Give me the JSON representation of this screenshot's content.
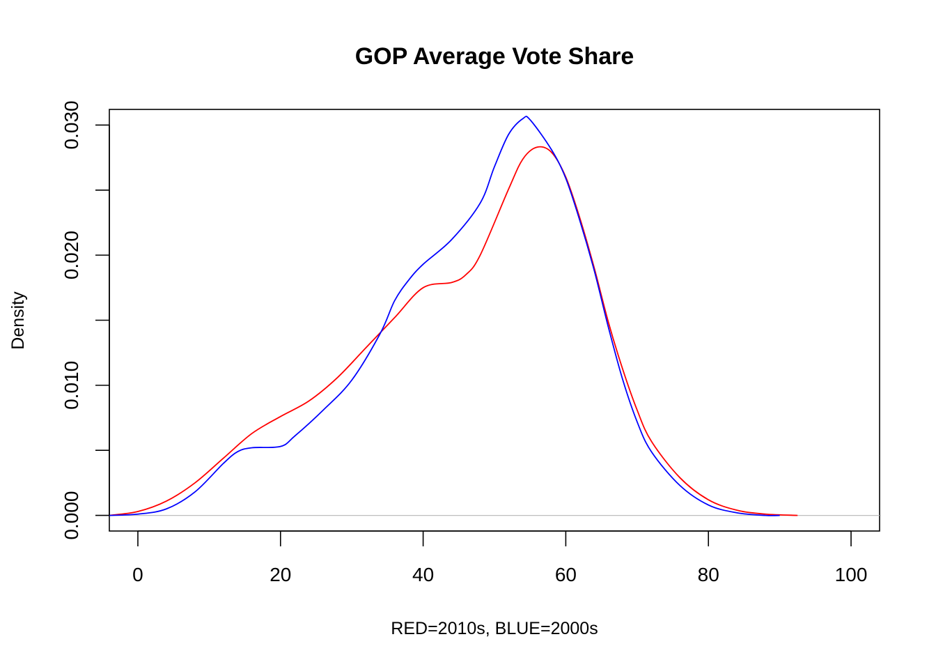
{
  "chart_data": {
    "type": "line",
    "title": "GOP Average Vote Share",
    "xlabel": "RED=2010s, BLUE=2000s",
    "ylabel": "Density",
    "xlim": [
      -4,
      104
    ],
    "ylim": [
      -0.0012,
      0.0312
    ],
    "x_ticks": [
      0,
      20,
      40,
      60,
      80,
      100
    ],
    "x_tick_labels": [
      "0",
      "20",
      "40",
      "60",
      "80",
      "100"
    ],
    "y_ticks": [
      0,
      0.005,
      0.01,
      0.015,
      0.02,
      0.025,
      0.03
    ],
    "y_tick_labels": [
      "0.000",
      "",
      "0.010",
      "",
      "0.020",
      "",
      "0.030"
    ],
    "baseline": 0,
    "grid": false,
    "series": [
      {
        "color": "#ff0000",
        "x": [
          -4,
          0,
          4,
          8,
          12,
          16,
          20,
          24,
          28,
          32,
          36,
          40,
          44,
          46,
          48,
          52,
          54,
          56,
          58,
          60,
          62,
          64,
          66,
          68,
          70,
          72,
          76,
          80,
          84,
          88,
          92.5
        ],
        "y": [
          0.0,
          0.0003,
          0.0011,
          0.0025,
          0.0044,
          0.0063,
          0.0076,
          0.0088,
          0.0106,
          0.0129,
          0.0152,
          0.0175,
          0.0179,
          0.0185,
          0.02,
          0.0251,
          0.0274,
          0.0283,
          0.0279,
          0.026,
          0.0228,
          0.019,
          0.0148,
          0.0112,
          0.0081,
          0.0057,
          0.0029,
          0.0012,
          0.0004,
          0.0001,
          0.0
        ]
      },
      {
        "color": "#0000ff",
        "x": [
          -4,
          0,
          4,
          8,
          12,
          14,
          16,
          20,
          22,
          26,
          30,
          34,
          36,
          38,
          40,
          44,
          48,
          50,
          52,
          54,
          55,
          58,
          60,
          62,
          64,
          66,
          68,
          70,
          72,
          76,
          80,
          84,
          88,
          90
        ],
        "y": [
          0.0,
          0.0001,
          0.0005,
          0.0018,
          0.004,
          0.0049,
          0.0052,
          0.0053,
          0.0061,
          0.0081,
          0.0104,
          0.014,
          0.0165,
          0.0181,
          0.0193,
          0.0212,
          0.024,
          0.0268,
          0.0293,
          0.0305,
          0.0304,
          0.0281,
          0.0259,
          0.0226,
          0.0188,
          0.0144,
          0.0104,
          0.0072,
          0.0049,
          0.0023,
          0.0008,
          0.0002,
          0.0,
          0.0
        ]
      }
    ]
  }
}
